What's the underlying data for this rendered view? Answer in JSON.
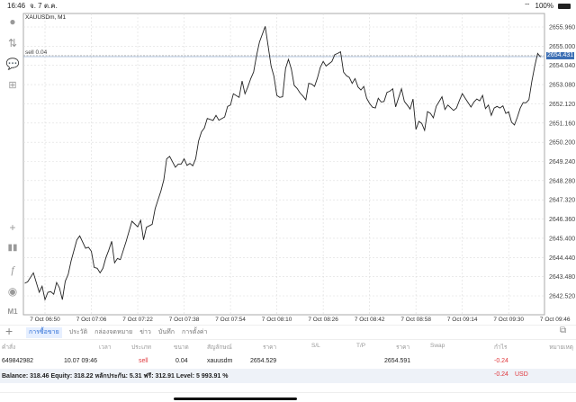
{
  "status_bar": {
    "time": "16:46",
    "date": "จ. 7 ต.ค.",
    "battery": "100%"
  },
  "chart": {
    "symbol_label": "XAUUSDm, M1",
    "order_line_label": "sell 0.04",
    "current_price": "2654.431",
    "colors": {
      "line": "#222222",
      "price_tag": "#3d6fb4",
      "grid": "#dddddd"
    }
  },
  "toolbar": {
    "icons": [
      "account-icon",
      "trade-arrows-icon",
      "chat-icon",
      "new-document-icon",
      "crosshair-icon",
      "candlestick-icon",
      "function-icon",
      "users-icon"
    ],
    "timeframe": "M1"
  },
  "chart_data": {
    "type": "line",
    "title": "XAUUSDm, M1",
    "y_ticks": [
      "2655.960",
      "2655.000",
      "2654.040",
      "2653.080",
      "2652.120",
      "2651.160",
      "2650.200",
      "2649.240",
      "2648.280",
      "2647.320",
      "2646.360",
      "2645.400",
      "2644.440",
      "2643.480",
      "2642.520"
    ],
    "x_ticks": [
      "7 Oct 06:50",
      "7 Oct 07:06",
      "7 Oct 07:22",
      "7 Oct 07:38",
      "7 Oct 07:54",
      "7 Oct 08:10",
      "7 Oct 08:26",
      "7 Oct 08:42",
      "7 Oct 08:58",
      "7 Oct 09:14",
      "7 Oct 09:30",
      "7 Oct 09:46"
    ],
    "ylim": [
      2642.52,
      2655.96
    ],
    "grid": true,
    "horizontal_lines": [
      {
        "label": "sell 0.04",
        "value": 2654.529
      },
      {
        "label": "2654.431",
        "value": 2654.431
      }
    ],
    "points": [
      [
        "06:43",
        2643.15
      ],
      [
        "06:44",
        2643.22
      ],
      [
        "06:46",
        2643.67
      ],
      [
        "06:48",
        2642.7
      ],
      [
        "06:49",
        2643.0
      ],
      [
        "06:50",
        2642.33
      ],
      [
        "06:51",
        2642.7
      ],
      [
        "06:52",
        2642.73
      ],
      [
        "06:53",
        2642.6
      ],
      [
        "06:54",
        2643.19
      ],
      [
        "06:55",
        2642.92
      ],
      [
        "06:56",
        2642.33
      ],
      [
        "06:57",
        2643.25
      ],
      [
        "06:58",
        2643.6
      ],
      [
        "06:59",
        2644.27
      ],
      [
        "07:01",
        2645.32
      ],
      [
        "07:02",
        2645.52
      ],
      [
        "07:04",
        2644.9
      ],
      [
        "07:05",
        2644.95
      ],
      [
        "07:06",
        2644.75
      ],
      [
        "07:07",
        2643.94
      ],
      [
        "07:08",
        2643.9
      ],
      [
        "07:09",
        2643.67
      ],
      [
        "07:10",
        2643.9
      ],
      [
        "07:11",
        2644.42
      ],
      [
        "07:12",
        2644.8
      ],
      [
        "07:13",
        2645.25
      ],
      [
        "07:14",
        2644.17
      ],
      [
        "07:15",
        2644.39
      ],
      [
        "07:16",
        2644.33
      ],
      [
        "07:18",
        2645.25
      ],
      [
        "07:20",
        2646.25
      ],
      [
        "07:22",
        2645.97
      ],
      [
        "07:23",
        2646.3
      ],
      [
        "07:24",
        2645.32
      ],
      [
        "07:25",
        2645.95
      ],
      [
        "07:27",
        2646.1
      ],
      [
        "07:28",
        2646.88
      ],
      [
        "07:30",
        2647.76
      ],
      [
        "07:31",
        2648.32
      ],
      [
        "07:32",
        2649.37
      ],
      [
        "07:33",
        2649.49
      ],
      [
        "07:35",
        2648.95
      ],
      [
        "07:36",
        2649.11
      ],
      [
        "07:37",
        2649.11
      ],
      [
        "07:38",
        2649.37
      ],
      [
        "07:39",
        2649.04
      ],
      [
        "07:40",
        2649.14
      ],
      [
        "07:41",
        2649.02
      ],
      [
        "07:42",
        2649.37
      ],
      [
        "07:43",
        2650.27
      ],
      [
        "07:44",
        2650.72
      ],
      [
        "07:45",
        2650.91
      ],
      [
        "07:46",
        2651.39
      ],
      [
        "07:48",
        2651.29
      ],
      [
        "07:49",
        2651.54
      ],
      [
        "07:50",
        2651.3
      ],
      [
        "07:52",
        2651.46
      ],
      [
        "07:53",
        2651.99
      ],
      [
        "07:54",
        2652.06
      ],
      [
        "07:55",
        2652.62
      ],
      [
        "07:57",
        2652.44
      ],
      [
        "07:58",
        2653.26
      ],
      [
        "07:59",
        2652.62
      ],
      [
        "08:00",
        2652.96
      ],
      [
        "08:01",
        2653.38
      ],
      [
        "08:02",
        2653.71
      ],
      [
        "08:03",
        2654.54
      ],
      [
        "08:04",
        2655.21
      ],
      [
        "08:06",
        2655.99
      ],
      [
        "08:08",
        2654.01
      ],
      [
        "08:09",
        2653.49
      ],
      [
        "08:10",
        2652.54
      ],
      [
        "08:11",
        2652.44
      ],
      [
        "08:12",
        2652.47
      ],
      [
        "08:13",
        2653.89
      ],
      [
        "08:14",
        2654.34
      ],
      [
        "08:15",
        2653.86
      ],
      [
        "08:16",
        2653.04
      ],
      [
        "08:17",
        2652.89
      ],
      [
        "08:18",
        2652.66
      ],
      [
        "08:19",
        2652.51
      ],
      [
        "08:20",
        2652.32
      ],
      [
        "08:21",
        2653.14
      ],
      [
        "08:22",
        2653.11
      ],
      [
        "08:23",
        2652.99
      ],
      [
        "08:24",
        2653.41
      ],
      [
        "08:25",
        2653.94
      ],
      [
        "08:26",
        2654.24
      ],
      [
        "08:27",
        2654.01
      ],
      [
        "08:29",
        2654.24
      ],
      [
        "08:30",
        2654.58
      ],
      [
        "08:31",
        2654.64
      ],
      [
        "08:32",
        2654.72
      ],
      [
        "08:33",
        2653.71
      ],
      [
        "08:34",
        2653.53
      ],
      [
        "08:35",
        2653.44
      ],
      [
        "08:36",
        2653.14
      ],
      [
        "08:37",
        2653.38
      ],
      [
        "08:38",
        2652.96
      ],
      [
        "08:39",
        2652.81
      ],
      [
        "08:40",
        2652.99
      ],
      [
        "08:41",
        2652.4
      ],
      [
        "08:42",
        2652.14
      ],
      [
        "08:43",
        2651.95
      ],
      [
        "08:44",
        2651.91
      ],
      [
        "08:45",
        2652.4
      ],
      [
        "08:46",
        2652.21
      ],
      [
        "08:47",
        2652.24
      ],
      [
        "08:48",
        2652.69
      ],
      [
        "08:49",
        2652.75
      ],
      [
        "08:50",
        2652.87
      ],
      [
        "08:51",
        2651.97
      ],
      [
        "08:53",
        2652.87
      ],
      [
        "08:54",
        2652.24
      ],
      [
        "08:55",
        2652.06
      ],
      [
        "08:56",
        2651.86
      ],
      [
        "08:57",
        2652.36
      ],
      [
        "08:58",
        2650.84
      ],
      [
        "08:59",
        2651.24
      ],
      [
        "09:00",
        2651.14
      ],
      [
        "09:01",
        2650.79
      ],
      [
        "09:02",
        2651.73
      ],
      [
        "09:03",
        2651.64
      ],
      [
        "09:04",
        2651.42
      ],
      [
        "09:05",
        2651.99
      ],
      [
        "09:07",
        2652.47
      ],
      [
        "09:08",
        2651.84
      ],
      [
        "09:09",
        2652.06
      ],
      [
        "09:11",
        2651.79
      ],
      [
        "09:12",
        2651.91
      ],
      [
        "09:13",
        2652.29
      ],
      [
        "09:14",
        2652.63
      ],
      [
        "09:15",
        2652.4
      ],
      [
        "09:17",
        2651.96
      ],
      [
        "09:18",
        2652.21
      ],
      [
        "09:19",
        2652.36
      ],
      [
        "09:20",
        2652.27
      ],
      [
        "09:21",
        2652.54
      ],
      [
        "09:22",
        2651.88
      ],
      [
        "09:23",
        2652.06
      ],
      [
        "09:24",
        2651.54
      ],
      [
        "09:25",
        2651.91
      ],
      [
        "09:26",
        2651.99
      ],
      [
        "09:27",
        2651.91
      ],
      [
        "09:28",
        2652.02
      ],
      [
        "09:29",
        2651.64
      ],
      [
        "09:30",
        2651.72
      ],
      [
        "09:31",
        2651.2
      ],
      [
        "09:32",
        2651.06
      ],
      [
        "09:33",
        2651.46
      ],
      [
        "09:34",
        2651.91
      ],
      [
        "09:35",
        2652.18
      ],
      [
        "09:36",
        2652.17
      ],
      [
        "09:37",
        2652.33
      ],
      [
        "09:38",
        2653.26
      ],
      [
        "09:39",
        2654.01
      ],
      [
        "09:40",
        2654.64
      ],
      [
        "09:41",
        2654.46
      ]
    ]
  },
  "bottom_tabs": [
    {
      "label": "การซื้อขาย",
      "active": true
    },
    {
      "label": "ประวัติ"
    },
    {
      "label": "กล่องจดหมาย"
    },
    {
      "label": "ข่าว"
    },
    {
      "label": "บันทึก"
    },
    {
      "label": "การตั้งค่า"
    }
  ],
  "table": {
    "headers": [
      "คำสั่ง",
      "เวลา",
      "ประเภท",
      "ขนาด",
      "สัญลักษณ์",
      "ราคา",
      "S/L",
      "T/P",
      "ราคา",
      "Swap",
      "กำไร",
      "หมายเหตุ"
    ],
    "rows": [
      {
        "order": "649842982",
        "time": "10.07 09:46",
        "type": "sell",
        "volume": "0.04",
        "symbol": "xauusdm",
        "open_price": "2654.529",
        "sl": "",
        "tp": "",
        "price": "2654.591",
        "swap": "",
        "profit": "-0.24",
        "comment": ""
      }
    ]
  },
  "summary": {
    "text": "Balance: 318.46 Equity: 318.22 หลักประกัน: 5.31 ฟรี: 312.91 Level: 5 993.91 %",
    "profit": "-0.24",
    "currency": "USD",
    "profit_color": "#e0393e"
  },
  "accent": "#2f6fd6"
}
